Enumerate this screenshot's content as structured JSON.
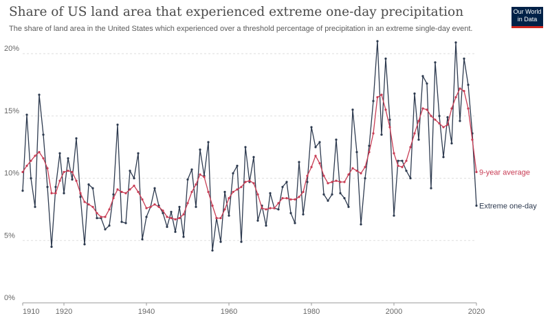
{
  "header": {
    "title": "Share of US land area that experienced extreme one-day precipitation",
    "subtitle": "The share of land area in the United States which experienced over a threshold percentage of precipitation in an extreme single-day event."
  },
  "logo": {
    "line1": "Our World",
    "line2": "in Data",
    "bg_color": "#002147",
    "accent_color": "#ce261e"
  },
  "chart_data": {
    "type": "line",
    "title": "Share of US land area that experienced extreme one-day precipitation",
    "subtitle": "The share of land area in the United States which experienced over a threshold percentage of precipitation in an extreme single-day event.",
    "xlabel": "",
    "ylabel": "",
    "xlim": [
      1910,
      2020
    ],
    "ylim": [
      0,
      21
    ],
    "x_ticks": [
      1910,
      1920,
      1940,
      1960,
      1980,
      2000,
      2020
    ],
    "x_tick_labels": [
      "1910",
      "1920",
      "1940",
      "1960",
      "1980",
      "2000",
      "2020"
    ],
    "y_ticks": [
      0,
      5,
      10,
      15,
      20
    ],
    "y_tick_labels": [
      "0%",
      "5%",
      "10%",
      "15%",
      "20%"
    ],
    "grid": true,
    "legend": "direct labels at right end of lines",
    "x": [
      1910,
      1911,
      1912,
      1913,
      1914,
      1915,
      1916,
      1917,
      1918,
      1919,
      1920,
      1921,
      1922,
      1923,
      1924,
      1925,
      1926,
      1927,
      1928,
      1929,
      1930,
      1931,
      1932,
      1933,
      1934,
      1935,
      1936,
      1937,
      1938,
      1939,
      1940,
      1941,
      1942,
      1943,
      1944,
      1945,
      1946,
      1947,
      1948,
      1949,
      1950,
      1951,
      1952,
      1953,
      1954,
      1955,
      1956,
      1957,
      1958,
      1959,
      1960,
      1961,
      1962,
      1963,
      1964,
      1965,
      1966,
      1967,
      1968,
      1969,
      1970,
      1971,
      1972,
      1973,
      1974,
      1975,
      1976,
      1977,
      1978,
      1979,
      1980,
      1981,
      1982,
      1983,
      1984,
      1985,
      1986,
      1987,
      1988,
      1989,
      1990,
      1991,
      1992,
      1993,
      1994,
      1995,
      1996,
      1997,
      1998,
      1999,
      2000,
      2001,
      2002,
      2003,
      2004,
      2005,
      2006,
      2007,
      2008,
      2009,
      2010,
      2011,
      2012,
      2013,
      2014,
      2015,
      2016,
      2017,
      2018,
      2019,
      2020
    ],
    "series": [
      {
        "name": "Extreme one-day",
        "color": "#2d3a4f",
        "values": [
          9.0,
          15.1,
          10.0,
          7.7,
          16.7,
          13.5,
          9.3,
          4.5,
          9.3,
          12.0,
          8.8,
          11.6,
          9.9,
          13.2,
          8.5,
          4.7,
          9.5,
          9.2,
          6.8,
          6.8,
          5.9,
          6.2,
          8.7,
          14.3,
          6.5,
          6.4,
          10.6,
          10.0,
          12.0,
          5.1,
          6.9,
          7.7,
          9.2,
          7.8,
          7.2,
          6.1,
          7.3,
          5.7,
          7.7,
          5.3,
          9.9,
          10.7,
          7.7,
          12.3,
          10.2,
          12.9,
          4.2,
          6.8,
          4.9,
          8.9,
          7.0,
          10.4,
          11.0,
          4.9,
          12.5,
          9.7,
          11.7,
          6.6,
          7.8,
          6.2,
          8.8,
          7.6,
          7.5,
          9.3,
          9.7,
          7.2,
          6.4,
          11.3,
          7.1,
          9.7,
          14.1,
          12.5,
          12.9,
          8.7,
          8.2,
          8.7,
          13.1,
          8.8,
          8.4,
          7.7,
          15.5,
          12.1,
          6.3,
          10.0,
          12.6,
          16.2,
          21.0,
          13.5,
          19.6,
          14.7,
          7.0,
          11.4,
          11.4,
          10.6,
          10.0,
          16.8,
          13.1,
          18.2,
          17.6,
          9.2,
          19.3,
          15.0,
          11.7,
          14.9,
          12.8,
          20.9,
          14.6,
          19.6,
          17.5,
          13.6,
          7.8
        ]
      },
      {
        "name": "9-year average",
        "color": "#c83c54",
        "values": [
          10.5,
          11.0,
          11.4,
          11.8,
          12.1,
          11.6,
          10.8,
          8.8,
          8.8,
          9.8,
          10.5,
          10.6,
          10.5,
          9.8,
          8.8,
          8.1,
          7.9,
          7.7,
          7.2,
          6.9,
          6.9,
          7.5,
          8.4,
          9.1,
          8.9,
          8.8,
          9.1,
          9.4,
          8.9,
          8.3,
          7.6,
          7.7,
          7.9,
          7.7,
          7.4,
          6.9,
          6.8,
          6.7,
          6.8,
          7.1,
          8.0,
          8.9,
          9.5,
          10.3,
          10.1,
          8.9,
          7.8,
          6.8,
          6.8,
          7.5,
          8.4,
          8.9,
          9.1,
          9.3,
          9.7,
          9.8,
          9.6,
          8.7,
          7.6,
          7.5,
          7.6,
          7.6,
          8.0,
          8.4,
          8.4,
          8.3,
          8.3,
          8.5,
          8.9,
          10.2,
          10.9,
          11.8,
          11.2,
          10.2,
          9.6,
          9.7,
          9.8,
          9.7,
          9.7,
          10.3,
          10.8,
          10.6,
          10.4,
          10.9,
          12.1,
          13.6,
          16.5,
          16.7,
          15.5,
          14.1,
          12.0,
          11.0,
          10.9,
          11.4,
          12.5,
          13.6,
          14.6,
          15.6,
          15.5,
          15.0,
          14.7,
          14.4,
          14.1,
          14.3,
          15.6,
          16.5,
          17.2,
          17.0,
          15.6,
          13.1,
          10.5
        ]
      }
    ]
  }
}
